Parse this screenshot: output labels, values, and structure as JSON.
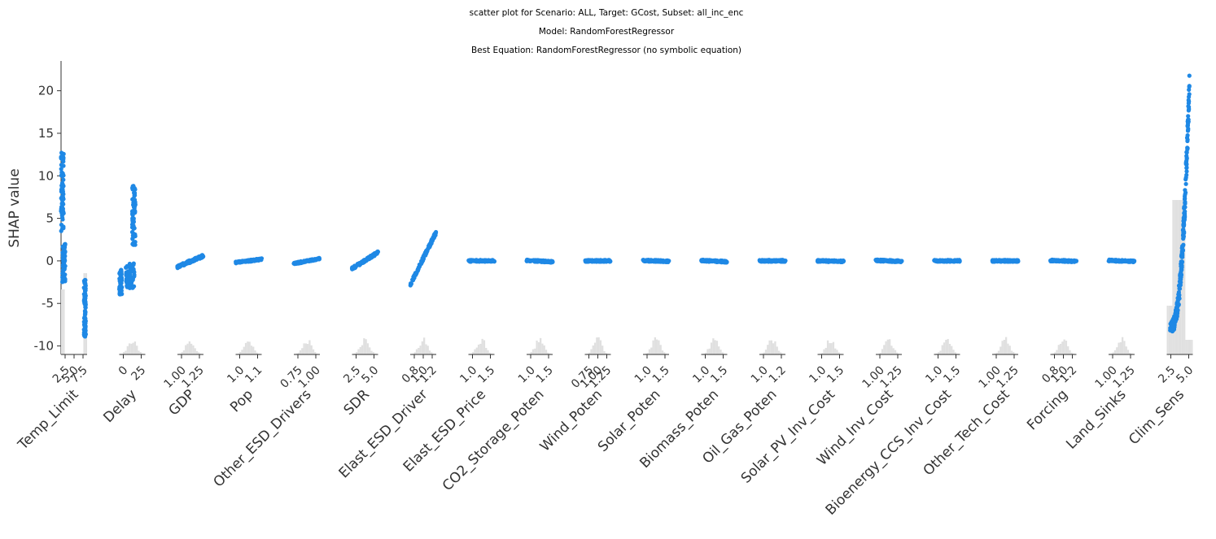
{
  "titles": [
    "scatter plot for Scenario: ALL, Target: GCost, Subset: all_inc_enc",
    "Model: RandomForestRegressor",
    "Best Equation: RandomForestRegressor (no symbolic equation)"
  ],
  "chart_data": {
    "type": "scatter",
    "ylabel": "SHAP value",
    "ylim": [
      -11,
      23.5
    ],
    "yticks": [
      -10,
      -5,
      0,
      5,
      10,
      15,
      20
    ],
    "point_color": "#1e88e5",
    "hist_color": "#e0e0e0",
    "features": [
      {
        "name": "Temp_Limit",
        "ticks": [
          "2.5",
          "5.0",
          "7.5"
        ],
        "groups": [
          [
            0.0,
            0.1,
            3.5,
            13.0
          ],
          [
            0.05,
            0.16,
            -2.5,
            2.0
          ],
          [
            0.88,
            0.95,
            -9.0,
            -2.0
          ]
        ]
      },
      {
        "name": "Delay",
        "ticks": [
          "0",
          "25"
        ],
        "groups": [
          [
            0.0,
            0.1,
            -4.0,
            -1.0
          ],
          [
            0.25,
            0.58,
            -3.2,
            -0.3
          ],
          [
            0.5,
            0.62,
            1.8,
            9.0
          ]
        ]
      },
      {
        "name": "GDP",
        "ticks": [
          "1.00",
          "1.25"
        ],
        "slope": [
          -0.7,
          0.6
        ],
        "spread": 0.15
      },
      {
        "name": "Pop",
        "ticks": [
          "1.0",
          "1.1"
        ],
        "slope": [
          -0.2,
          0.2
        ],
        "spread": 0.1
      },
      {
        "name": "Other_ESD_Drivers",
        "ticks": [
          "0.75",
          "1.00"
        ],
        "slope": [
          -0.3,
          0.25
        ],
        "spread": 0.1
      },
      {
        "name": "SDR",
        "ticks": [
          "2.5",
          "5.0"
        ],
        "slope": [
          -0.9,
          1.0
        ],
        "spread": 0.15
      },
      {
        "name": "Elast_ESD_Driver",
        "ticks": [
          "0.8",
          "1.0",
          "1.2"
        ],
        "slope": [
          -2.8,
          3.4
        ],
        "spread": 0.2
      },
      {
        "name": "Elast_ESD_Price",
        "ticks": [
          "1.0",
          "1.5"
        ],
        "slope": [
          0.0,
          0.0
        ],
        "spread": 0.1
      },
      {
        "name": "CO2_Storage_Poten",
        "ticks": [
          "1.0",
          "1.5"
        ],
        "slope": [
          0.05,
          -0.1
        ],
        "spread": 0.1
      },
      {
        "name": "Wind_Poten",
        "ticks": [
          "0.75",
          "1.00",
          "1.25"
        ],
        "slope": [
          0.0,
          0.0
        ],
        "spread": 0.1
      },
      {
        "name": "Solar_Poten",
        "ticks": [
          "1.0",
          "1.5"
        ],
        "slope": [
          0.05,
          -0.05
        ],
        "spread": 0.1
      },
      {
        "name": "Biomass_Poten",
        "ticks": [
          "1.0",
          "1.5"
        ],
        "slope": [
          0.05,
          -0.1
        ],
        "spread": 0.1
      },
      {
        "name": "Oil_Gas_Poten",
        "ticks": [
          "1.0",
          "1.2"
        ],
        "slope": [
          0.0,
          0.0
        ],
        "spread": 0.1
      },
      {
        "name": "Solar_PV_Inv_Cost",
        "ticks": [
          "1.0",
          "1.5"
        ],
        "slope": [
          0.0,
          -0.05
        ],
        "spread": 0.1
      },
      {
        "name": "Wind_Inv_Cost",
        "ticks": [
          "1.00",
          "1.25"
        ],
        "slope": [
          0.05,
          -0.05
        ],
        "spread": 0.1
      },
      {
        "name": "Bioenergy_CCS_Inv_Cost",
        "ticks": [
          "1.0",
          "1.5"
        ],
        "slope": [
          0.0,
          0.0
        ],
        "spread": 0.1
      },
      {
        "name": "Other_Tech_Cost",
        "ticks": [
          "1.00",
          "1.25"
        ],
        "slope": [
          0.0,
          0.0
        ],
        "spread": 0.1
      },
      {
        "name": "Forcing",
        "ticks": [
          "0.8",
          "1.0",
          "1.2"
        ],
        "slope": [
          0.05,
          -0.05
        ],
        "spread": 0.1
      },
      {
        "name": "Land_Sinks",
        "ticks": [
          "1.00",
          "1.25"
        ],
        "slope": [
          0.05,
          -0.05
        ],
        "spread": 0.1
      },
      {
        "name": "Clim_Sens",
        "ticks": [
          "2.5",
          "5.0"
        ],
        "curve": [
          -7.8,
          21.8
        ]
      }
    ]
  }
}
